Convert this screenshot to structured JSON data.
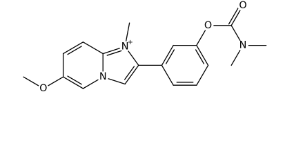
{
  "atoms": {
    "methoxy_oxygen": "O",
    "bridgehead_nitrogen": "N",
    "ring_nitrogen": "N",
    "ring_nitrogen_charge": "+",
    "ester_oxygen": "O",
    "carbonyl_oxygen": "O",
    "amine_nitrogen": "N"
  }
}
